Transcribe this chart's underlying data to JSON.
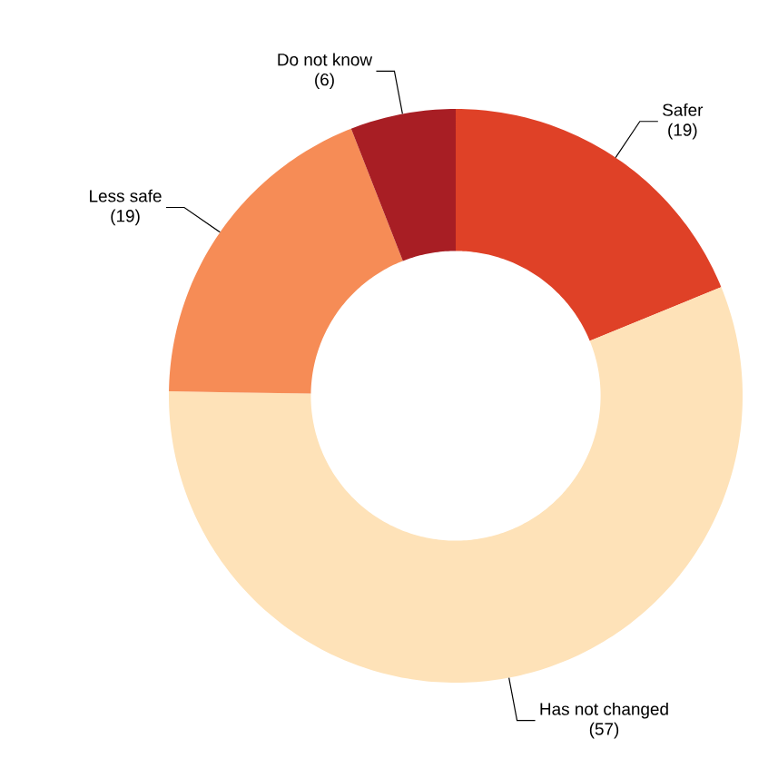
{
  "chart_data": {
    "type": "donut",
    "categories": [
      "Safer",
      "Has not changed",
      "Less safe",
      "Do not know"
    ],
    "values": [
      19,
      57,
      19,
      6
    ],
    "value_labels": [
      "(19)",
      "(57)",
      "(19)",
      "(6)"
    ],
    "colors": [
      "#df4127",
      "#fee2b8",
      "#f68c56",
      "#a81e24"
    ]
  }
}
